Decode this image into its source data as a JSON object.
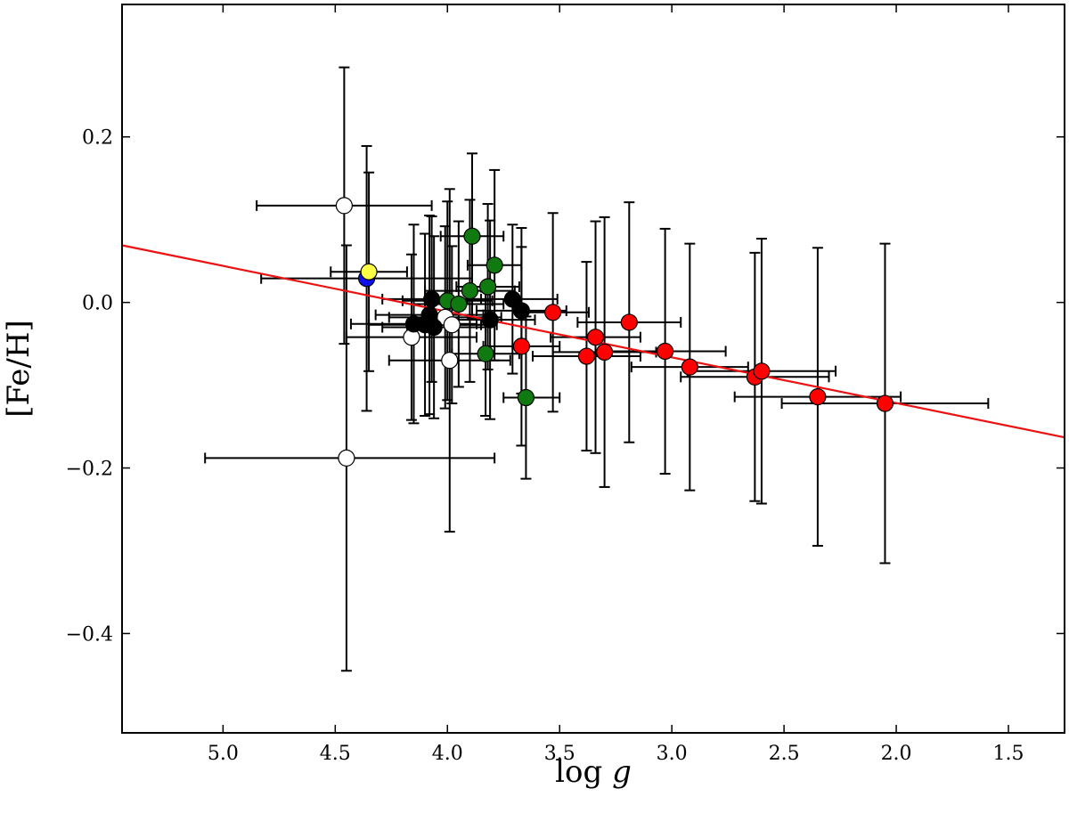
{
  "chart_data": {
    "type": "scatter",
    "xlabel_main": "log ",
    "xlabel_var": "g",
    "ylabel": "[Fe/H]",
    "xlim": [
      5.45,
      1.25
    ],
    "ylim": [
      -0.52,
      0.36
    ],
    "x_ticks": [
      5.0,
      4.5,
      4.0,
      3.5,
      3.0,
      2.5,
      2.0,
      1.5
    ],
    "x_tick_labels": [
      "5.0",
      "4.5",
      "4.0",
      "3.5",
      "3.0",
      "2.5",
      "2.0",
      "1.5"
    ],
    "y_ticks": [
      0.2,
      0.0,
      -0.2,
      -0.4
    ],
    "y_tick_labels": [
      "0.2",
      "0.0",
      "−0.2",
      "−0.4"
    ],
    "grid": false,
    "colors": {
      "white": "#ffffff",
      "black": "#000000",
      "green": "#107a10",
      "red": "#ff0000",
      "blue": "#1010ee",
      "yellow": "#ffff44",
      "fit_line": "#ee1111"
    },
    "fit_line": {
      "x": [
        5.45,
        1.25
      ],
      "y": [
        0.069,
        -0.163
      ]
    },
    "points": [
      {
        "color": "white",
        "x": 4.46,
        "y": 0.117,
        "xerr": [
          0.39,
          0.39
        ],
        "yerr": [
          0.167,
          0.167
        ]
      },
      {
        "color": "white",
        "x": 4.45,
        "y": -0.188,
        "xerr": [
          0.63,
          0.66
        ],
        "yerr": [
          0.257,
          0.257
        ]
      },
      {
        "color": "white",
        "x": 4.16,
        "y": -0.042,
        "xerr": [
          0.29,
          0.29
        ],
        "yerr": [
          0.1,
          0.1
        ]
      },
      {
        "color": "white",
        "x": 4.01,
        "y": -0.018,
        "xerr": [
          0.25,
          0.25
        ],
        "yerr": [
          0.11,
          0.11
        ]
      },
      {
        "color": "white",
        "x": 3.99,
        "y": -0.07,
        "xerr": [
          0.27,
          0.27
        ],
        "yerr": [
          0.207,
          0.207
        ]
      },
      {
        "color": "white",
        "x": 3.98,
        "y": -0.027,
        "xerr": [
          0.2,
          0.2
        ],
        "yerr": [
          0.095,
          0.095
        ]
      },
      {
        "color": "blue",
        "x": 4.36,
        "y": 0.029,
        "xerr": [
          0.47,
          0.47
        ],
        "yerr": [
          0.16,
          0.16
        ]
      },
      {
        "color": "yellow",
        "x": 4.35,
        "y": 0.037,
        "xerr": [
          0.17,
          0.17
        ],
        "yerr": [
          0.12,
          0.12
        ]
      },
      {
        "color": "black",
        "x": 4.15,
        "y": -0.026,
        "xerr": [
          0.28,
          0.28
        ],
        "yerr": [
          0.12,
          0.12
        ]
      },
      {
        "color": "black",
        "x": 4.1,
        "y": -0.027,
        "xerr": [
          0.25,
          0.25
        ],
        "yerr": [
          0.11,
          0.11
        ]
      },
      {
        "color": "black",
        "x": 4.08,
        "y": -0.015,
        "xerr": [
          0.24,
          0.24
        ],
        "yerr": [
          0.12,
          0.12
        ]
      },
      {
        "color": "black",
        "x": 4.07,
        "y": 0.004,
        "xerr": [
          0.22,
          0.22
        ],
        "yerr": [
          0.1,
          0.1
        ]
      },
      {
        "color": "black",
        "x": 4.06,
        "y": -0.03,
        "xerr": [
          0.23,
          0.23
        ],
        "yerr": [
          0.11,
          0.11
        ]
      },
      {
        "color": "black",
        "x": 3.81,
        "y": -0.021,
        "xerr": [
          0.2,
          0.2
        ],
        "yerr": [
          0.12,
          0.12
        ]
      },
      {
        "color": "black",
        "x": 3.71,
        "y": 0.004,
        "xerr": [
          0.2,
          0.2
        ],
        "yerr": [
          0.09,
          0.09
        ]
      },
      {
        "color": "black",
        "x": 3.67,
        "y": -0.01,
        "xerr": [
          0.2,
          0.2
        ],
        "yerr": [
          0.1,
          0.1
        ]
      },
      {
        "color": "green",
        "x": 3.89,
        "y": 0.08,
        "xerr": [
          0.14,
          0.14
        ],
        "yerr": [
          0.1,
          0.1
        ]
      },
      {
        "color": "green",
        "x": 3.79,
        "y": 0.045,
        "xerr": [
          0.12,
          0.12
        ],
        "yerr": [
          0.115,
          0.115
        ]
      },
      {
        "color": "green",
        "x": 3.82,
        "y": 0.019,
        "xerr": [
          0.14,
          0.14
        ],
        "yerr": [
          0.1,
          0.1
        ]
      },
      {
        "color": "green",
        "x": 3.9,
        "y": 0.014,
        "xerr": [
          0.2,
          0.2
        ],
        "yerr": [
          0.11,
          0.11
        ]
      },
      {
        "color": "green",
        "x": 4.0,
        "y": 0.002,
        "xerr": [
          0.2,
          0.2
        ],
        "yerr": [
          0.12,
          0.12
        ]
      },
      {
        "color": "green",
        "x": 3.95,
        "y": -0.002,
        "xerr": [
          0.2,
          0.2
        ],
        "yerr": [
          0.1,
          0.1
        ]
      },
      {
        "color": "green",
        "x": 3.83,
        "y": -0.062,
        "xerr": [
          0.15,
          0.15
        ],
        "yerr": [
          0.075,
          0.075
        ]
      },
      {
        "color": "green",
        "x": 3.65,
        "y": -0.115,
        "xerr": [
          0.1,
          0.15
        ],
        "yerr": [
          0.098,
          0.098
        ]
      },
      {
        "color": "red",
        "x": 3.53,
        "y": -0.012,
        "xerr": [
          0.16,
          0.16
        ],
        "yerr": [
          0.12,
          0.12
        ]
      },
      {
        "color": "red",
        "x": 3.67,
        "y": -0.053,
        "xerr": [
          0.17,
          0.17
        ],
        "yerr": [
          0.12,
          0.12
        ]
      },
      {
        "color": "red",
        "x": 3.38,
        "y": -0.065,
        "xerr": [
          0.24,
          0.24
        ],
        "yerr": [
          0.114,
          0.114
        ]
      },
      {
        "color": "red",
        "x": 3.34,
        "y": -0.042,
        "xerr": [
          0.2,
          0.2
        ],
        "yerr": [
          0.14,
          0.14
        ]
      },
      {
        "color": "red",
        "x": 3.3,
        "y": -0.06,
        "xerr": [
          0.23,
          0.23
        ],
        "yerr": [
          0.163,
          0.163
        ]
      },
      {
        "color": "red",
        "x": 3.19,
        "y": -0.024,
        "xerr": [
          0.23,
          0.23
        ],
        "yerr": [
          0.145,
          0.145
        ]
      },
      {
        "color": "red",
        "x": 3.03,
        "y": -0.059,
        "xerr": [
          0.27,
          0.27
        ],
        "yerr": [
          0.148,
          0.148
        ]
      },
      {
        "color": "red",
        "x": 2.92,
        "y": -0.078,
        "xerr": [
          0.26,
          0.26
        ],
        "yerr": [
          0.149,
          0.149
        ]
      },
      {
        "color": "red",
        "x": 2.63,
        "y": -0.09,
        "xerr": [
          0.33,
          0.33
        ],
        "yerr": [
          0.15,
          0.15
        ]
      },
      {
        "color": "red",
        "x": 2.6,
        "y": -0.083,
        "xerr": [
          0.33,
          0.33
        ],
        "yerr": [
          0.16,
          0.16
        ]
      },
      {
        "color": "red",
        "x": 2.35,
        "y": -0.114,
        "xerr": [
          0.37,
          0.37
        ],
        "yerr": [
          0.18,
          0.18
        ]
      },
      {
        "color": "red",
        "x": 2.05,
        "y": -0.122,
        "xerr": [
          0.46,
          0.46
        ],
        "yerr": [
          0.193,
          0.193
        ]
      }
    ]
  }
}
